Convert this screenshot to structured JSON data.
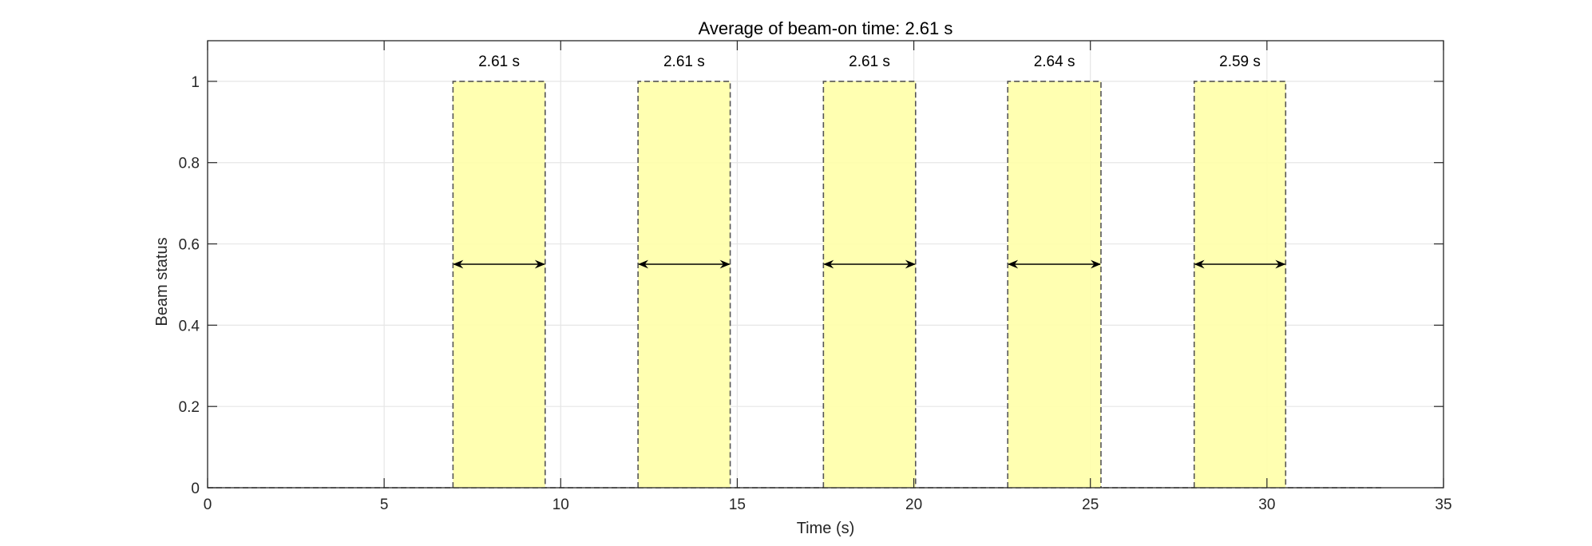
{
  "chart_data": {
    "type": "area",
    "title": "Average of beam-on time: 2.61 s",
    "xlabel": "Time (s)",
    "ylabel": "Beam status",
    "xlim": [
      0,
      35
    ],
    "ylim": [
      0,
      1.1
    ],
    "x_ticks": [
      0,
      5,
      10,
      15,
      20,
      25,
      30,
      35
    ],
    "y_ticks": [
      0,
      0.2,
      0.4,
      0.6,
      0.8,
      1
    ],
    "x_tick_labels": [
      "0",
      "5",
      "10",
      "15",
      "20",
      "25",
      "30",
      "35"
    ],
    "y_tick_labels": [
      "0",
      "0.2",
      "0.4",
      "0.6",
      "0.8",
      "1"
    ],
    "grid": true,
    "baseline": {
      "x_start": 0,
      "x_end": 33.3,
      "y": 0
    },
    "arrow_y": 0.55,
    "pulses": [
      {
        "start": 6.95,
        "end": 9.56,
        "label": "2.61 s"
      },
      {
        "start": 12.19,
        "end": 14.8,
        "label": "2.61 s"
      },
      {
        "start": 17.44,
        "end": 20.05,
        "label": "2.61 s"
      },
      {
        "start": 22.66,
        "end": 25.3,
        "label": "2.64 s"
      },
      {
        "start": 27.94,
        "end": 30.53,
        "label": "2.59 s"
      }
    ],
    "colors": {
      "fill": "#ffffa8",
      "pulse_edge": "#555555",
      "arrow": "#000000",
      "grid": "#e6e6e6",
      "axes": "#262626"
    }
  }
}
